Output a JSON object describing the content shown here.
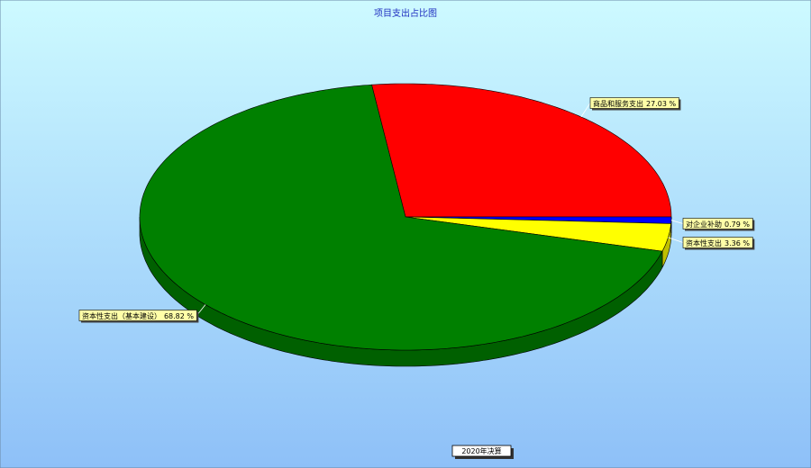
{
  "chart_data": {
    "type": "pie3d",
    "title": "项目支出占比图",
    "categories": [
      "商品和服务支出",
      "对企业补助",
      "资本性支出",
      "资本性支出（基本建设）"
    ],
    "values": [
      27.03,
      0.79,
      3.36,
      68.82
    ],
    "value_labels": [
      "27.03 %",
      "0.79 %",
      "3.36 %",
      "68.82 %"
    ],
    "colors": [
      "#ff0000",
      "#0000ff",
      "#ffff00",
      "#008000"
    ],
    "legend_label": "2020年决算"
  }
}
